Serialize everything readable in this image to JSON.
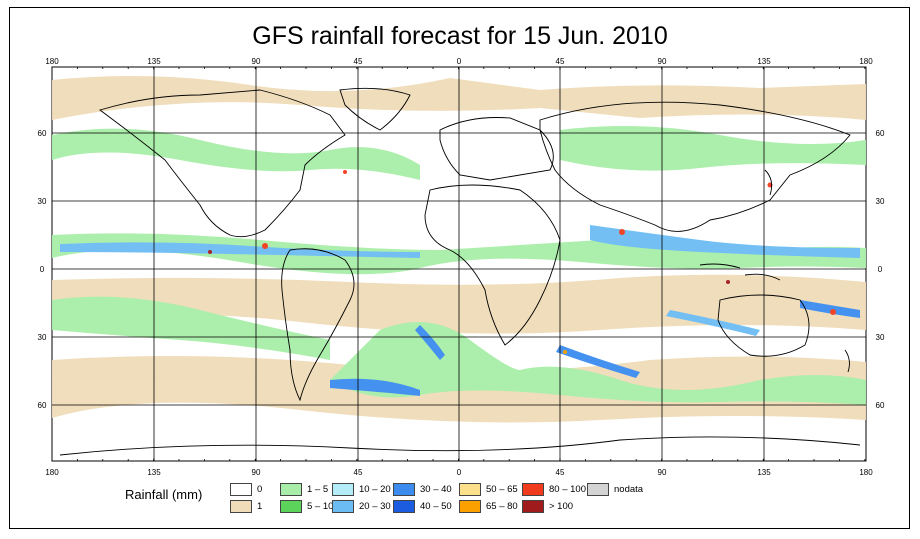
{
  "title": "GFS rainfall forecast for 15 Jun. 2010",
  "map": {
    "lon_ticks": [
      "180",
      "135",
      "90",
      "45",
      "0",
      "45",
      "90",
      "135",
      "180"
    ],
    "lat_ticks": [
      "60",
      "30",
      "0",
      "30",
      "60"
    ]
  },
  "legend": {
    "title": "Rainfall (mm)",
    "items": [
      {
        "label": "0",
        "color": "#ffffff"
      },
      {
        "label": "1",
        "color": "#f0dcb8"
      },
      {
        "label": "1 – 5",
        "color": "#a8eea8"
      },
      {
        "label": "5 – 10",
        "color": "#5cd45c"
      },
      {
        "label": "10 – 20",
        "color": "#b4ecf8"
      },
      {
        "label": "20 – 30",
        "color": "#6cbcf4"
      },
      {
        "label": "30 – 40",
        "color": "#3c8cf0"
      },
      {
        "label": "40 – 50",
        "color": "#1c5ce0"
      },
      {
        "label": "50 – 65",
        "color": "#fce08c"
      },
      {
        "label": "65 – 80",
        "color": "#fca000"
      },
      {
        "label": "80 – 100",
        "color": "#f03c1c"
      },
      {
        "label": "> 100",
        "color": "#a01c1c"
      },
      {
        "label": "nodata",
        "color": "#d4d4d4"
      }
    ]
  }
}
